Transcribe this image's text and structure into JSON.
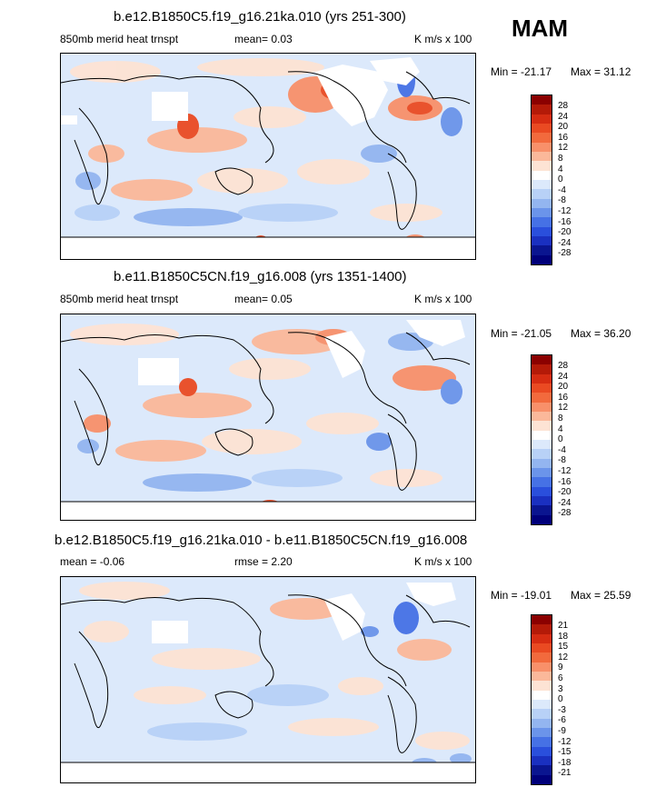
{
  "season": "MAM",
  "panels": [
    {
      "title": "b.e12.B1850C5.f19_g16.21ka.010 (yrs 251-300)",
      "left_label": "850mb merid heat trnspt",
      "center_label": "mean=   0.03",
      "units": "K m/s x 100",
      "min_label": "Min = -21.17",
      "max_label": "Max =  31.12",
      "colorbar_labels": [
        "28",
        "24",
        "20",
        "16",
        "12",
        "8",
        "4",
        "0",
        "-4",
        "-8",
        "-12",
        "-16",
        "-20",
        "-24",
        "-28"
      ]
    },
    {
      "title": "b.e11.B1850C5CN.f19_g16.008 (yrs 1351-1400)",
      "left_label": "850mb merid heat trnspt",
      "center_label": "mean=   0.05",
      "units": "K m/s x 100",
      "min_label": "Min = -21.05",
      "max_label": "Max =  36.20",
      "colorbar_labels": [
        "28",
        "24",
        "20",
        "16",
        "12",
        "8",
        "4",
        "0",
        "-4",
        "-8",
        "-12",
        "-16",
        "-20",
        "-24",
        "-28"
      ]
    },
    {
      "title": "b.e12.B1850C5.f19_g16.21ka.010 - b.e11.B1850C5CN.f19_g16.008",
      "left_label": "mean =  -0.06",
      "center_label": "rmse =   2.20",
      "units": "K m/s x 100",
      "min_label": "Min = -19.01",
      "max_label": "Max =  25.59",
      "colorbar_labels": [
        "21",
        "18",
        "15",
        "12",
        "9",
        "6",
        "3",
        "0",
        "-3",
        "-6",
        "-9",
        "-12",
        "-15",
        "-18",
        "-21"
      ]
    }
  ],
  "colors": {
    "colorbar": [
      "#8b0000",
      "#b41a08",
      "#d62c12",
      "#ea4a22",
      "#f26a3d",
      "#f8906a",
      "#fbb89a",
      "#fde3d4",
      "#ffffff",
      "#dce9fb",
      "#b8d1f7",
      "#93b5f0",
      "#6b94ea",
      "#4671e5",
      "#2a4fdc",
      "#1a30c0",
      "#0a1590",
      "#00007a"
    ],
    "positive": "#f29a78",
    "negative": "#9cbcf0"
  }
}
